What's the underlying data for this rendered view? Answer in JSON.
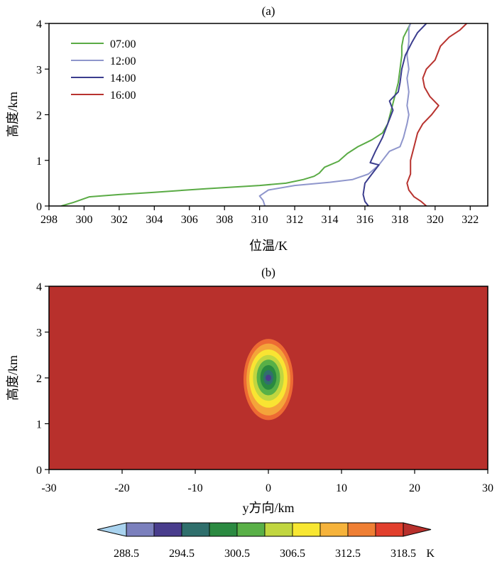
{
  "chart_data": [
    {
      "type": "line",
      "title": "(a)",
      "xlabel": "位温/K",
      "ylabel": "高度/km",
      "xlim": [
        298,
        323
      ],
      "ylim": [
        0,
        4
      ],
      "xticks": [
        298,
        300,
        302,
        304,
        306,
        308,
        310,
        312,
        314,
        316,
        318,
        320,
        322
      ],
      "yticks": [
        0,
        1,
        2,
        3,
        4
      ],
      "legend": "top-left",
      "series": [
        {
          "name": "07:00",
          "color": "#5aab45",
          "points": [
            [
              298.7,
              0.0
            ],
            [
              299.4,
              0.08
            ],
            [
              300.3,
              0.2
            ],
            [
              302.0,
              0.25
            ],
            [
              304.0,
              0.3
            ],
            [
              307.0,
              0.38
            ],
            [
              310.0,
              0.45
            ],
            [
              311.5,
              0.5
            ],
            [
              312.5,
              0.58
            ],
            [
              313.1,
              0.65
            ],
            [
              313.4,
              0.72
            ],
            [
              313.7,
              0.85
            ],
            [
              314.5,
              0.98
            ],
            [
              315.0,
              1.15
            ],
            [
              315.6,
              1.3
            ],
            [
              316.4,
              1.45
            ],
            [
              317.0,
              1.6
            ],
            [
              317.3,
              1.8
            ],
            [
              317.5,
              2.1
            ],
            [
              317.7,
              2.4
            ],
            [
              317.9,
              2.7
            ],
            [
              318.0,
              3.0
            ],
            [
              318.1,
              3.3
            ],
            [
              318.1,
              3.5
            ],
            [
              318.2,
              3.7
            ],
            [
              318.6,
              4.0
            ]
          ]
        },
        {
          "name": "12:00",
          "color": "#8f96cc",
          "points": [
            [
              310.3,
              0.0
            ],
            [
              310.2,
              0.12
            ],
            [
              310.0,
              0.22
            ],
            [
              310.5,
              0.35
            ],
            [
              312.0,
              0.45
            ],
            [
              314.0,
              0.52
            ],
            [
              315.3,
              0.58
            ],
            [
              316.2,
              0.7
            ],
            [
              316.8,
              0.9
            ],
            [
              317.4,
              1.2
            ],
            [
              318.0,
              1.3
            ],
            [
              318.2,
              1.5
            ],
            [
              318.4,
              1.8
            ],
            [
              318.5,
              2.0
            ],
            [
              318.4,
              2.2
            ],
            [
              318.5,
              2.5
            ],
            [
              318.4,
              2.8
            ],
            [
              318.5,
              3.0
            ],
            [
              318.4,
              3.3
            ],
            [
              318.5,
              3.6
            ],
            [
              318.5,
              3.9
            ],
            [
              318.6,
              4.0
            ]
          ]
        },
        {
          "name": "14:00",
          "color": "#3b3d8e",
          "points": [
            [
              316.2,
              0.0
            ],
            [
              316.0,
              0.1
            ],
            [
              315.9,
              0.25
            ],
            [
              316.0,
              0.5
            ],
            [
              316.4,
              0.7
            ],
            [
              316.8,
              0.9
            ],
            [
              316.3,
              0.95
            ],
            [
              316.6,
              1.2
            ],
            [
              317.0,
              1.5
            ],
            [
              317.3,
              1.8
            ],
            [
              317.6,
              2.1
            ],
            [
              317.4,
              2.3
            ],
            [
              317.9,
              2.5
            ],
            [
              318.0,
              2.7
            ],
            [
              318.1,
              3.0
            ],
            [
              318.3,
              3.3
            ],
            [
              318.7,
              3.6
            ],
            [
              319.0,
              3.8
            ],
            [
              319.5,
              4.0
            ]
          ]
        },
        {
          "name": "16:00",
          "color": "#b8332f",
          "points": [
            [
              319.5,
              0.0
            ],
            [
              319.2,
              0.1
            ],
            [
              318.8,
              0.2
            ],
            [
              318.5,
              0.35
            ],
            [
              318.4,
              0.5
            ],
            [
              318.6,
              0.7
            ],
            [
              318.6,
              1.0
            ],
            [
              318.8,
              1.3
            ],
            [
              319.0,
              1.6
            ],
            [
              319.3,
              1.8
            ],
            [
              319.8,
              2.0
            ],
            [
              320.2,
              2.2
            ],
            [
              319.7,
              2.4
            ],
            [
              319.4,
              2.6
            ],
            [
              319.3,
              2.8
            ],
            [
              319.5,
              3.0
            ],
            [
              320.0,
              3.2
            ],
            [
              320.3,
              3.5
            ],
            [
              320.8,
              3.7
            ],
            [
              321.4,
              3.85
            ],
            [
              321.8,
              4.0
            ]
          ]
        }
      ]
    },
    {
      "type": "heatmap",
      "title": "(b)",
      "xlabel": "y方向/km",
      "ylabel": "高度/km",
      "xlim": [
        -30,
        30
      ],
      "ylim": [
        0,
        4
      ],
      "xticks": [
        -30,
        -20,
        -10,
        0,
        10,
        20,
        30
      ],
      "yticks": [
        0,
        1,
        2,
        3,
        4
      ],
      "background_value": 318.5,
      "anomaly": {
        "center_y_km": 0,
        "center_z_km": 2,
        "contours": [
          {
            "level": 315.5,
            "half_width_km": 3.4,
            "top_km": 2.85,
            "bottom_km": 1.08,
            "color": "#ed6a33"
          },
          {
            "level": 312.5,
            "half_width_km": 3.0,
            "top_km": 2.75,
            "bottom_km": 1.18,
            "color": "#f4a43a"
          },
          {
            "level": 309.5,
            "half_width_km": 2.6,
            "top_km": 2.62,
            "bottom_km": 1.35,
            "color": "#f9e432"
          },
          {
            "level": 306.5,
            "half_width_km": 2.1,
            "top_km": 2.5,
            "bottom_km": 1.5,
            "color": "#c0d640"
          },
          {
            "level": 303.5,
            "half_width_km": 1.6,
            "top_km": 2.4,
            "bottom_km": 1.62,
            "color": "#58b047"
          },
          {
            "level": 300.5,
            "half_width_km": 1.1,
            "top_km": 2.28,
            "bottom_km": 1.74,
            "color": "#2a8a3f"
          },
          {
            "level": 297.5,
            "half_width_km": 0.7,
            "top_km": 2.17,
            "bottom_km": 1.85,
            "color": "#30706d"
          },
          {
            "level": 294.5,
            "half_width_km": 0.4,
            "top_km": 2.07,
            "bottom_km": 1.93,
            "color": "#4a3d8d"
          }
        ]
      },
      "colorbar": {
        "unit": "K",
        "colors": [
          "#a9d3ef",
          "#7b80bd",
          "#493d8d",
          "#2f6f6c",
          "#2b8a41",
          "#59b047",
          "#c1d640",
          "#f8e732",
          "#f6b33b",
          "#ef7f34",
          "#e23f2d",
          "#b8302c"
        ],
        "tick_labels": [
          "288.5",
          "294.5",
          "300.5",
          "306.5",
          "312.5",
          "318.5"
        ],
        "tick_values": [
          288.5,
          294.5,
          300.5,
          306.5,
          312.5,
          318.5
        ],
        "boundaries": [
          288.5,
          291.5,
          294.5,
          297.5,
          300.5,
          303.5,
          306.5,
          309.5,
          312.5,
          315.5,
          318.5
        ]
      }
    }
  ]
}
